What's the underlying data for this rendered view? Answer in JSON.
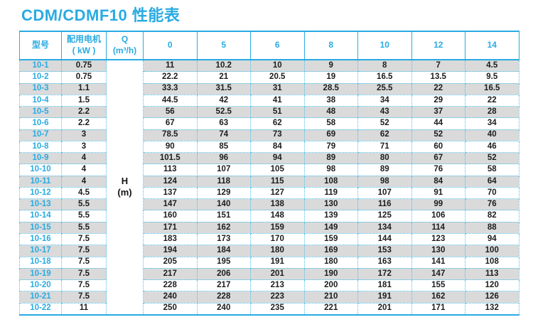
{
  "title": "CDM/CDMF10 性能表",
  "colors": {
    "accent": "#29abe2",
    "row_alt_gray": "#dadada",
    "body_text": "#1c1c1c"
  },
  "table": {
    "headers": {
      "model": "型号",
      "motor_line1": "配用电机",
      "motor_line2": "( kW )",
      "q_line1": "Q",
      "q_line2": "(m³/h)",
      "flow_columns": [
        "0",
        "5",
        "6",
        "8",
        "10",
        "12",
        "14"
      ]
    },
    "h_unit_line1": "H",
    "h_unit_line2": "(m)",
    "rows": [
      {
        "model": "10-1",
        "kw": "0.75",
        "h_values": [
          "11",
          "10.2",
          "10",
          "9",
          "8",
          "7",
          "4.5"
        ]
      },
      {
        "model": "10-2",
        "kw": "0.75",
        "h_values": [
          "22.2",
          "21",
          "20.5",
          "19",
          "16.5",
          "13.5",
          "9.5"
        ]
      },
      {
        "model": "10-3",
        "kw": "1.1",
        "h_values": [
          "33.3",
          "31.5",
          "31",
          "28.5",
          "25.5",
          "22",
          "16.5"
        ]
      },
      {
        "model": "10-4",
        "kw": "1.5",
        "h_values": [
          "44.5",
          "42",
          "41",
          "38",
          "34",
          "29",
          "22"
        ]
      },
      {
        "model": "10-5",
        "kw": "2.2",
        "h_values": [
          "56",
          "52.5",
          "51",
          "48",
          "43",
          "37",
          "28"
        ]
      },
      {
        "model": "10-6",
        "kw": "2.2",
        "h_values": [
          "67",
          "63",
          "62",
          "58",
          "52",
          "44",
          "34"
        ]
      },
      {
        "model": "10-7",
        "kw": "3",
        "h_values": [
          "78.5",
          "74",
          "73",
          "69",
          "62",
          "52",
          "40"
        ]
      },
      {
        "model": "10-8",
        "kw": "3",
        "h_values": [
          "90",
          "85",
          "84",
          "79",
          "71",
          "60",
          "46"
        ]
      },
      {
        "model": "10-9",
        "kw": "4",
        "h_values": [
          "101.5",
          "96",
          "94",
          "89",
          "80",
          "67",
          "52"
        ]
      },
      {
        "model": "10-10",
        "kw": "4",
        "h_values": [
          "113",
          "107",
          "105",
          "98",
          "89",
          "76",
          "58"
        ]
      },
      {
        "model": "10-11",
        "kw": "4",
        "h_values": [
          "124",
          "118",
          "115",
          "108",
          "98",
          "84",
          "64"
        ]
      },
      {
        "model": "10-12",
        "kw": "4.5",
        "h_values": [
          "137",
          "129",
          "127",
          "119",
          "107",
          "91",
          "70"
        ]
      },
      {
        "model": "10-13",
        "kw": "5.5",
        "h_values": [
          "147",
          "140",
          "138",
          "130",
          "116",
          "99",
          "76"
        ]
      },
      {
        "model": "10-14",
        "kw": "5.5",
        "h_values": [
          "160",
          "151",
          "148",
          "139",
          "125",
          "106",
          "82"
        ]
      },
      {
        "model": "10-15",
        "kw": "5.5",
        "h_values": [
          "171",
          "162",
          "159",
          "149",
          "134",
          "114",
          "88"
        ]
      },
      {
        "model": "10-16",
        "kw": "7.5",
        "h_values": [
          "183",
          "173",
          "170",
          "159",
          "144",
          "123",
          "94"
        ]
      },
      {
        "model": "10-17",
        "kw": "7.5",
        "h_values": [
          "194",
          "184",
          "180",
          "169",
          "153",
          "130",
          "100"
        ]
      },
      {
        "model": "10-18",
        "kw": "7.5",
        "h_values": [
          "205",
          "195",
          "191",
          "180",
          "163",
          "141",
          "108"
        ]
      },
      {
        "model": "10-19",
        "kw": "7.5",
        "h_values": [
          "217",
          "206",
          "201",
          "190",
          "172",
          "147",
          "113"
        ]
      },
      {
        "model": "10-20",
        "kw": "7.5",
        "h_values": [
          "228",
          "217",
          "213",
          "200",
          "181",
          "155",
          "120"
        ]
      },
      {
        "model": "10-21",
        "kw": "7.5",
        "h_values": [
          "240",
          "228",
          "223",
          "210",
          "191",
          "162",
          "126"
        ]
      },
      {
        "model": "10-22",
        "kw": "11",
        "h_values": [
          "250",
          "240",
          "235",
          "221",
          "201",
          "171",
          "132"
        ]
      }
    ]
  }
}
